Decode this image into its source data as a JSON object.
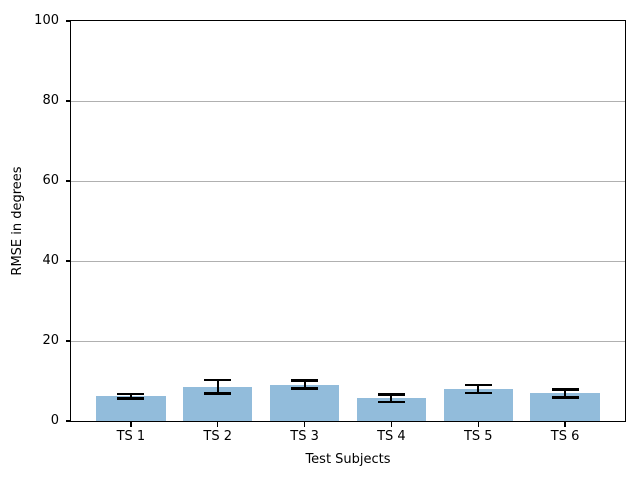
{
  "chart_data": {
    "type": "bar",
    "title": "",
    "xlabel": "Test Subjects",
    "ylabel": "RMSE in degrees",
    "categories": [
      "TS 1",
      "TS 2",
      "TS 3",
      "TS 4",
      "TS 5",
      "TS 6"
    ],
    "values": [
      6.2,
      8.6,
      9.1,
      5.7,
      8.0,
      6.9
    ],
    "errors": [
      0.6,
      1.7,
      1.0,
      0.9,
      1.0,
      1.0
    ],
    "ylim": [
      0,
      100
    ],
    "yticks": [
      0,
      20,
      40,
      60,
      80,
      100
    ],
    "grid": "horizontal",
    "legend_position": "none",
    "bar_color": "#92bcdb",
    "error_color": "#000000",
    "grid_color": "#b0b0b0",
    "spine_color": "#000000",
    "text_color": "#000000",
    "background_color": "#ffffff"
  }
}
